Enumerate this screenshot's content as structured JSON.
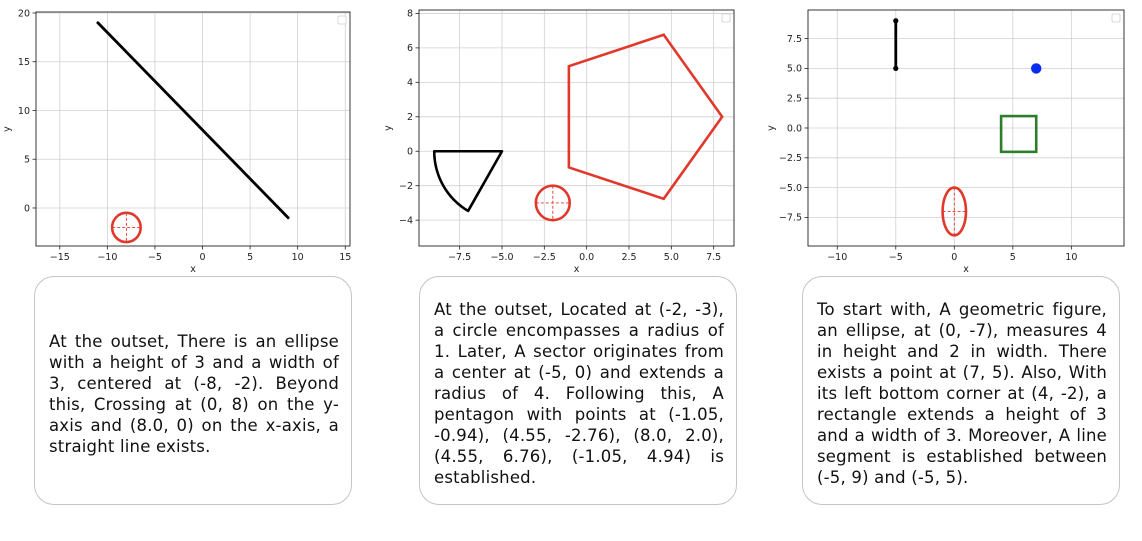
{
  "panels": [
    {
      "description": "At the outset, There is an ellipse with a height of 3 and a width of 3, centered at (-8, -2). Beyond this, Crossing at (0, 8) on the y-axis and (8.0, 0) on the x-axis, a straight line exists.",
      "chart_data": {
        "type": "diagram",
        "xlabel": "x",
        "ylabel": "y",
        "xlim": [
          -17.5,
          15.5
        ],
        "ylim": [
          -3.9,
          20.1
        ],
        "xticks": [
          -15,
          -10,
          -5,
          0,
          5,
          10,
          15
        ],
        "yticks": [
          0,
          5,
          10,
          15,
          20
        ],
        "grid": true,
        "legend": "top-right",
        "shapes": [
          {
            "kind": "ellipse",
            "center": [
              -8,
              -2
            ],
            "width": 3,
            "height": 3,
            "color": "#e0392b",
            "crosshair": true
          },
          {
            "kind": "line",
            "points": [
              [
                -11,
                19
              ],
              [
                9,
                -1
              ]
            ],
            "color": "#000000"
          }
        ]
      }
    },
    {
      "description": "At the outset, Located at (-2, -3), a circle encompasses a radius of 1. Later, A sector originates from a center at (-5, 0) and extends a radius of 4. Following this, A pentagon with points at (-1.05, -0.94), (4.55, -2.76), (8.0, 2.0), (4.55, 6.76), (-1.05, 4.94) is established.",
      "chart_data": {
        "type": "diagram",
        "xlabel": "x",
        "ylabel": "y",
        "xlim": [
          -9.9,
          8.7
        ],
        "ylim": [
          -5.5,
          8.2
        ],
        "xticks": [
          -7.5,
          -5.0,
          -2.5,
          0.0,
          2.5,
          5.0,
          7.5
        ],
        "yticks": [
          -4,
          -2,
          0,
          2,
          4,
          6,
          8
        ],
        "grid": true,
        "legend": "top-right",
        "shapes": [
          {
            "kind": "ellipse",
            "center": [
              -2,
              -3
            ],
            "width": 2,
            "height": 2,
            "color": "#e0392b",
            "crosshair": true
          },
          {
            "kind": "sector",
            "center": [
              -5,
              0
            ],
            "radius": 4,
            "angles": [
              180,
              240
            ],
            "color": "#000000"
          },
          {
            "kind": "polygon",
            "points": [
              [
                -1.05,
                -0.94
              ],
              [
                4.55,
                -2.76
              ],
              [
                8.0,
                2.0
              ],
              [
                4.55,
                6.76
              ],
              [
                -1.05,
                4.94
              ]
            ],
            "color": "#e0392b"
          }
        ]
      }
    },
    {
      "description": "To start with, A geometric figure, an ellipse, at (0, -7), measures 4 in height and 2 in width.  There exists a point at (7, 5). Also, With its left bottom corner at (4, -2), a rectangle extends a height of 3 and a width of 3. Moreover, A line segment is established between (-5, 9) and (-5, 5).",
      "chart_data": {
        "type": "diagram",
        "xlabel": "x",
        "ylabel": "y",
        "xlim": [
          -12.5,
          14.5
        ],
        "ylim": [
          -9.9,
          9.9
        ],
        "xticks": [
          -10,
          -5,
          0,
          5,
          10
        ],
        "yticks": [
          -7.5,
          -5.0,
          -2.5,
          0.0,
          2.5,
          5.0,
          7.5
        ],
        "grid": true,
        "legend": "top-right",
        "shapes": [
          {
            "kind": "ellipse",
            "center": [
              0,
              -7
            ],
            "width": 2,
            "height": 4,
            "color": "#e0392b",
            "crosshair": true
          },
          {
            "kind": "point",
            "at": [
              7,
              5
            ],
            "color": "#0a2cf0"
          },
          {
            "kind": "rect",
            "corner": [
              4,
              -2
            ],
            "width": 3,
            "height": 3,
            "color": "#2f7d2a"
          },
          {
            "kind": "segment",
            "points": [
              [
                -5,
                9
              ],
              [
                -5,
                5
              ]
            ],
            "color": "#000000",
            "endpoints": true
          }
        ]
      }
    }
  ]
}
